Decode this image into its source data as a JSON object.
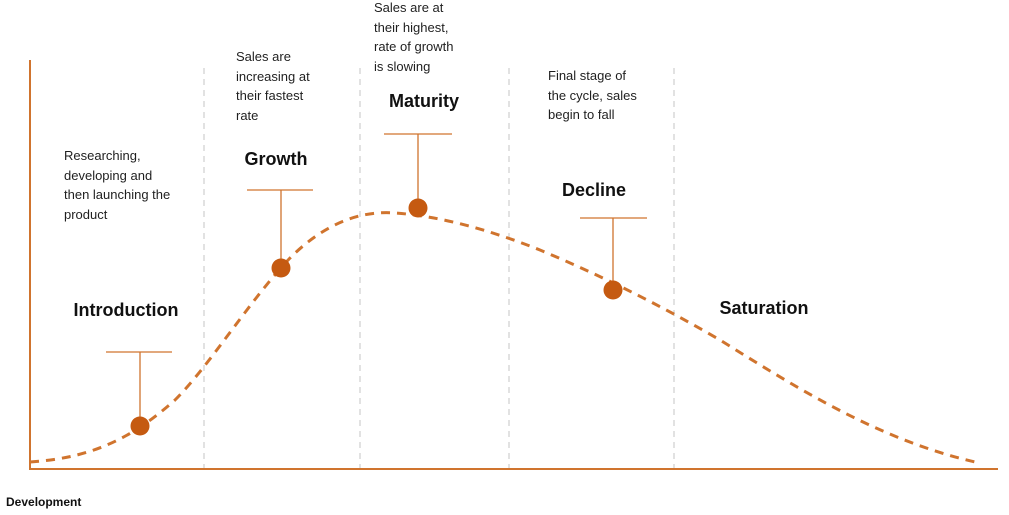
{
  "colors": {
    "accent": "#d0742e",
    "marker": "#c55a11",
    "divider": "#d9d9d9"
  },
  "descriptions": {
    "introduction": [
      "Researching,",
      "developing and",
      "then launching the",
      "product"
    ],
    "growth": [
      "Sales are",
      "increasing at",
      "their fastest",
      "rate"
    ],
    "maturity": [
      "Sales are at",
      "their highest,",
      "rate of growth",
      "is slowing"
    ],
    "decline": [
      "Final stage of",
      "the cycle, sales",
      "begin to fall"
    ]
  },
  "stages": {
    "introduction": "Introduction",
    "growth": "Growth",
    "maturity": "Maturity",
    "decline": "Decline",
    "saturation": "Saturation"
  },
  "axis": {
    "x_caption": "Development"
  }
}
